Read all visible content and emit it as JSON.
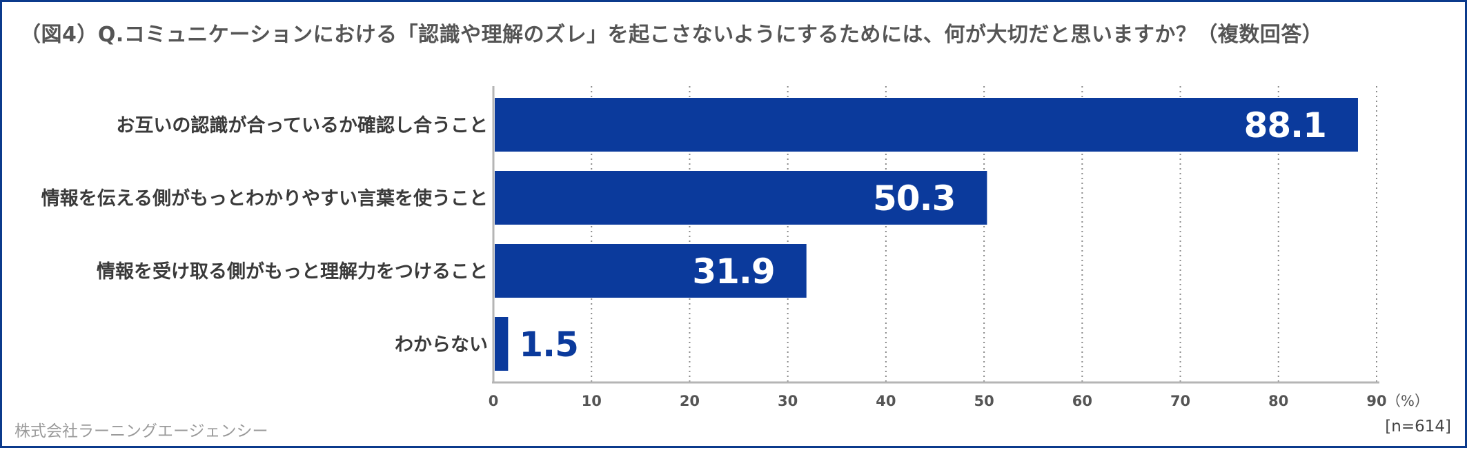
{
  "chart_data": {
    "type": "bar",
    "orientation": "horizontal",
    "title": "（図4）Q.コミュニケーションにおける「認識や理解のズレ」を起こさないようにするためには、何が大切だと思いますか？（複数回答）",
    "categories": [
      "お互いの認識が合っているか確認し合うこと",
      "情報を伝える側がもっとわかりやすい言葉を使うこと",
      "情報を受け取る側がもっと理解力をつけること",
      "わからない"
    ],
    "values": [
      88.1,
      50.3,
      31.9,
      1.5
    ],
    "value_labels": [
      "88.1",
      "50.3",
      "31.9",
      "1.5"
    ],
    "xlim": [
      0,
      90
    ],
    "xticks": [
      0,
      10,
      20,
      30,
      40,
      50,
      60,
      70,
      80,
      90
    ],
    "xunit": "（%）",
    "grid": "vertical-dotted",
    "bar_color": "#0b3a9c",
    "label_color_inside": "#ffffff",
    "label_color_outside": "#0b3a9c"
  },
  "footer": {
    "credit": "株式会社ラーニングエージェンシー",
    "sample": "[n=614]"
  }
}
